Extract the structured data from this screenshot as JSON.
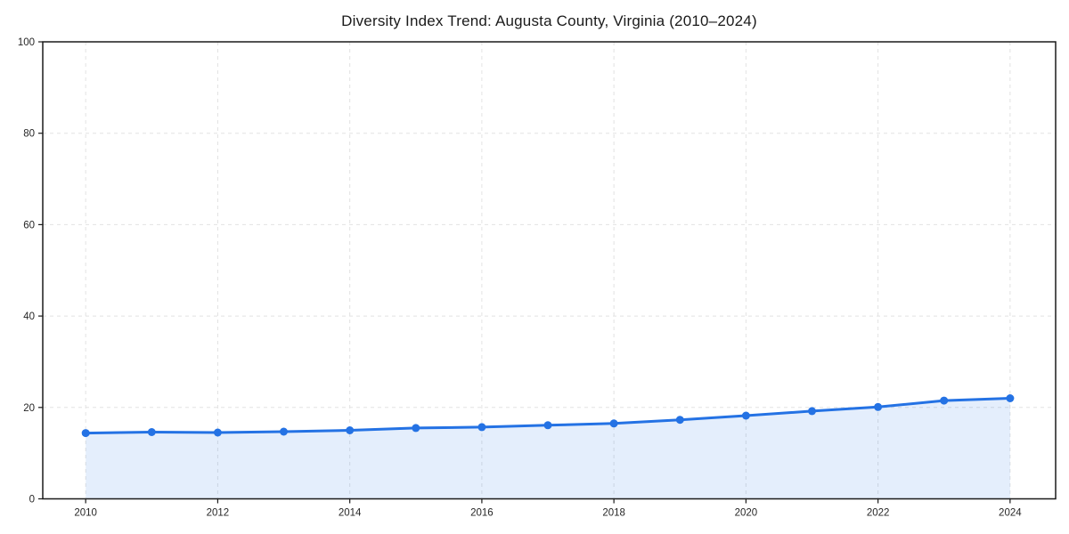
{
  "chart_data": {
    "type": "line",
    "title": "Diversity Index Trend: Augusta County, Virginia (2010–2024)",
    "series_name": "Diversity Index",
    "x": [
      2010,
      2011,
      2012,
      2013,
      2014,
      2015,
      2016,
      2017,
      2018,
      2019,
      2020,
      2021,
      2022,
      2023,
      2024
    ],
    "values": [
      14.4,
      14.6,
      14.5,
      14.7,
      15.0,
      15.5,
      15.7,
      16.1,
      16.5,
      17.3,
      18.2,
      19.2,
      20.1,
      21.5,
      22.0
    ],
    "xlabel": "",
    "ylabel": "",
    "xlim": [
      2009.35,
      2024.69
    ],
    "ylim": [
      0,
      100
    ],
    "x_ticks": [
      "2010",
      "2012",
      "2014",
      "2016",
      "2018",
      "2020",
      "2022",
      "2024"
    ],
    "x_tick_values": [
      2010,
      2012,
      2014,
      2016,
      2018,
      2020,
      2022,
      2024
    ],
    "y_ticks": [
      "0",
      "20",
      "40",
      "60",
      "80",
      "100"
    ],
    "y_tick_values": [
      0,
      20,
      40,
      60,
      80,
      100
    ],
    "grid": true,
    "grid_style": "dashed",
    "legend_position": "none",
    "area_fill": true,
    "markers": true,
    "colors": {
      "line": "#2472e4",
      "marker": "#2472e4",
      "area_fill": "rgba(36, 114, 228, 0.12)",
      "grid": "#e2e2e2",
      "axis_border": "#1a1a1a",
      "title": "#1a1a1a",
      "tick_label": "#262626",
      "background": "#ffffff"
    }
  }
}
